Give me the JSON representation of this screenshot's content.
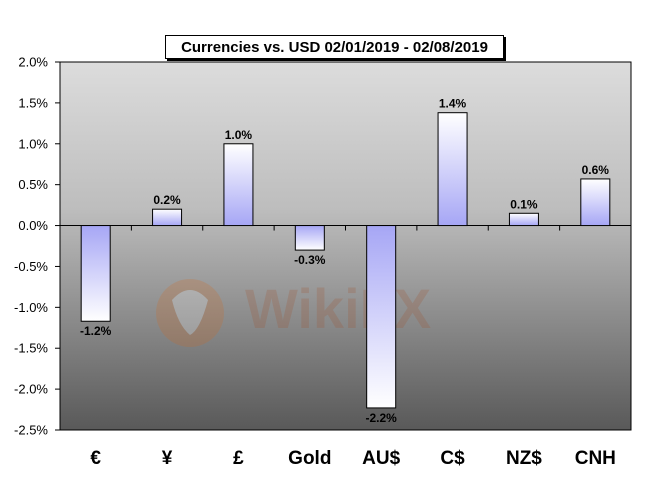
{
  "chart_data": {
    "type": "bar",
    "title": "Currencies vs. USD 02/01/2019 - 02/08/2019",
    "categories": [
      "€",
      "¥",
      "£",
      "Gold",
      "AU$",
      "C$",
      "NZ$",
      "CNH"
    ],
    "values": [
      -1.17,
      0.2,
      1.0,
      -0.3,
      -2.23,
      1.38,
      0.15,
      0.57
    ],
    "data_labels": [
      "-1.2%",
      "0.2%",
      "1.0%",
      "-0.3%",
      "-2.2%",
      "1.4%",
      "0.1%",
      "0.6%"
    ],
    "y_ticks": [
      "2.0%",
      "1.5%",
      "1.0%",
      "0.5%",
      "0.0%",
      "-0.5%",
      "-1.0%",
      "-1.5%",
      "-2.0%",
      "-2.5%"
    ],
    "y_tick_values": [
      2.0,
      1.5,
      1.0,
      0.5,
      0.0,
      -0.5,
      -1.0,
      -1.5,
      -2.0,
      -2.5
    ],
    "ylim": [
      -2.5,
      2.0
    ],
    "xlabel": "",
    "ylabel": "",
    "grid": false,
    "legend": "none",
    "colors": {
      "bar_top": "#a6a6f5",
      "bar_bottom": "#ffffff",
      "plot_top": "#d9d9d9",
      "plot_mid": "#bdbdbd",
      "plot_bottom": "#5a5a5a"
    }
  },
  "watermark": {
    "text": "WikiFX"
  }
}
